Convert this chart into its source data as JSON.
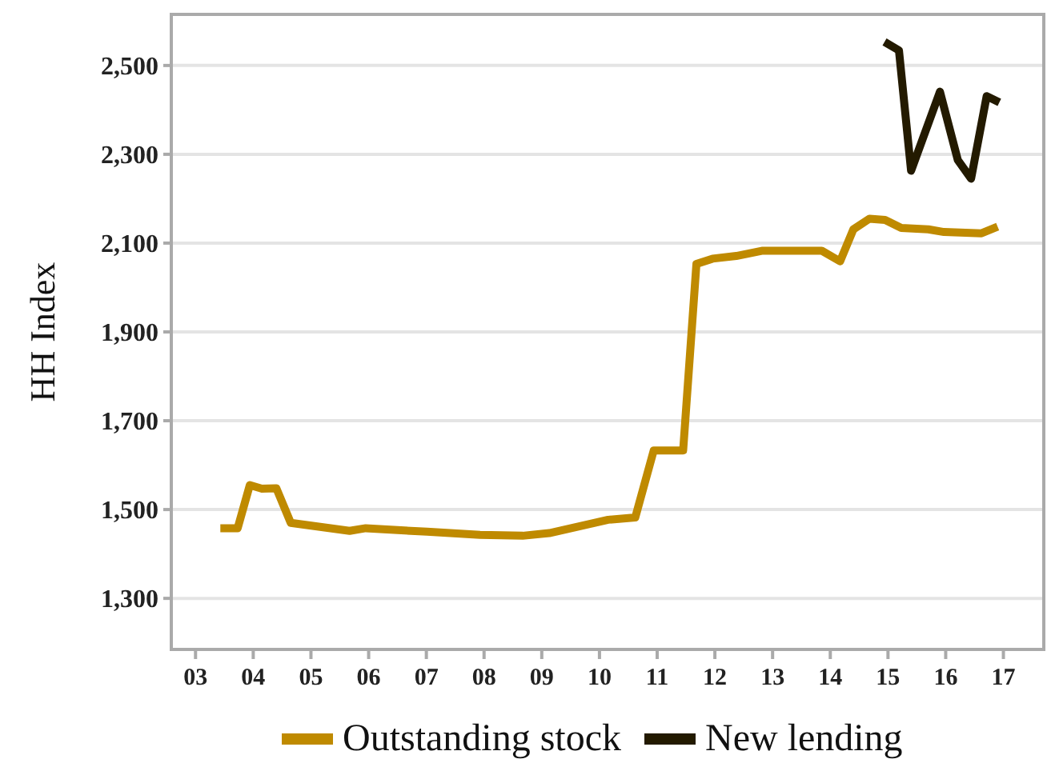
{
  "chart_data": {
    "type": "line",
    "ylabel": "HH Index",
    "x": [
      2003.43,
      2003.73,
      2003.94,
      2004.15,
      2004.4,
      2004.65,
      2005.67,
      2005.95,
      2007.01,
      2007.93,
      2008.67,
      2009.13,
      2010.15,
      2010.62,
      2010.94,
      2011.45,
      2011.68,
      2011.96,
      2012.37,
      2012.83,
      2013.85,
      2014.17,
      2014.4,
      2014.68,
      2014.95,
      2015.23,
      2015.7,
      2015.97,
      2016.62,
      2016.9
    ],
    "series": [
      {
        "name": "Outstanding stock",
        "color": "#bf8a00",
        "values": [
          1458,
          1458,
          1555,
          1547,
          1548,
          1470,
          1452,
          1458,
          1450,
          1443,
          1441,
          1447,
          1477,
          1482,
          1633,
          1633,
          2053,
          2065,
          2071,
          2083,
          2083,
          2059,
          2131,
          2155,
          2152,
          2134,
          2131,
          2125,
          2122,
          2137
        ]
      },
      {
        "name": "New lending",
        "color": "#231a00",
        "x": [
          2014.94,
          2015.19,
          2015.4,
          2015.9,
          2016.21,
          2016.44,
          2016.71,
          2016.93
        ],
        "values": [
          2553,
          2534,
          2263,
          2441,
          2287,
          2245,
          2431,
          2417
        ]
      }
    ],
    "xlim": [
      2002.58,
      2017.7
    ],
    "xticks": [
      {
        "value": 2003,
        "label": "03"
      },
      {
        "value": 2004,
        "label": "04"
      },
      {
        "value": 2005,
        "label": "05"
      },
      {
        "value": 2006,
        "label": "06"
      },
      {
        "value": 2007,
        "label": "07"
      },
      {
        "value": 2008,
        "label": "08"
      },
      {
        "value": 2009,
        "label": "09"
      },
      {
        "value": 2010,
        "label": "10"
      },
      {
        "value": 2011,
        "label": "11"
      },
      {
        "value": 2012,
        "label": "12"
      },
      {
        "value": 2013,
        "label": "13"
      },
      {
        "value": 2014,
        "label": "14"
      },
      {
        "value": 2015,
        "label": "15"
      },
      {
        "value": 2016,
        "label": "16"
      },
      {
        "value": 2017,
        "label": "17"
      }
    ],
    "ylim": [
      1185,
      2615
    ],
    "yticks": [
      {
        "value": 1300,
        "label": "1,300"
      },
      {
        "value": 1500,
        "label": "1,500"
      },
      {
        "value": 1700,
        "label": "1,700"
      },
      {
        "value": 1900,
        "label": "1,900"
      },
      {
        "value": 2100,
        "label": "2,100"
      },
      {
        "value": 2300,
        "label": "2,300"
      },
      {
        "value": 2500,
        "label": "2,500"
      }
    ],
    "grid": "y",
    "legend": "bottom",
    "line_style": "solid",
    "marker": "none"
  }
}
